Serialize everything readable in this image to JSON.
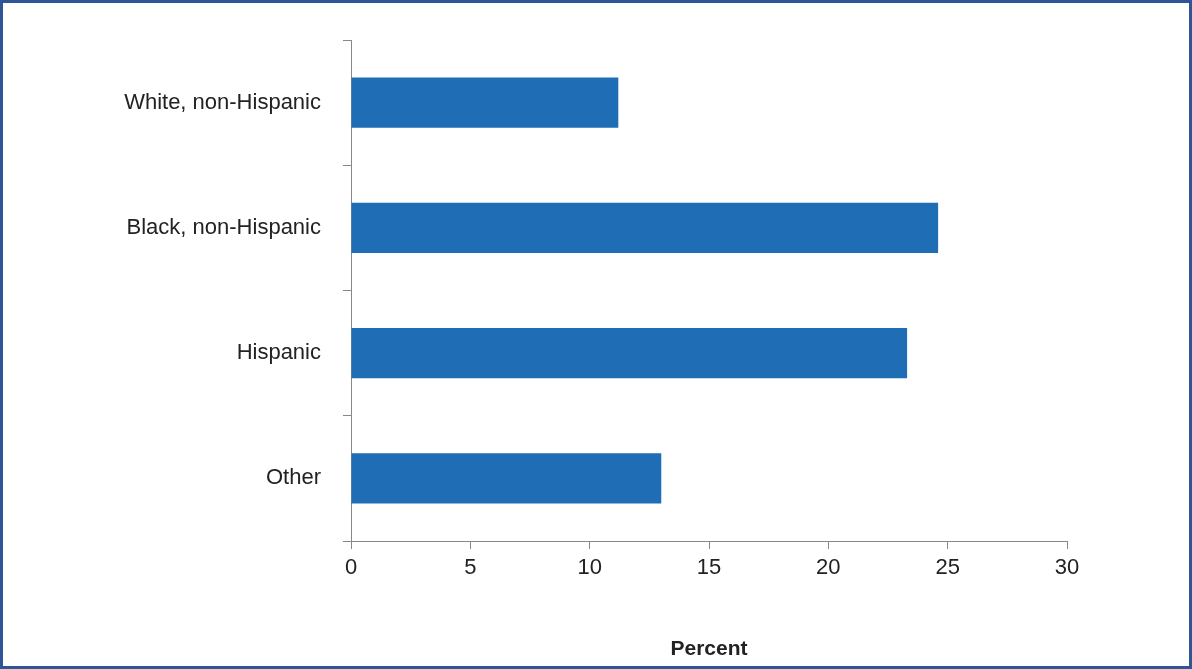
{
  "chart_data": {
    "type": "bar",
    "orientation": "horizontal",
    "xlabel": "Percent",
    "categories": [
      "White, non-Hispanic",
      "Black, non-Hispanic",
      "Hispanic",
      "Other"
    ],
    "values": [
      11.2,
      24.6,
      23.3,
      13.0
    ],
    "color": "#1f6db5",
    "xlim": [
      0,
      30
    ],
    "xticks": [
      0,
      5,
      10,
      15,
      20,
      25,
      30
    ],
    "grid": false,
    "legend": false
  }
}
